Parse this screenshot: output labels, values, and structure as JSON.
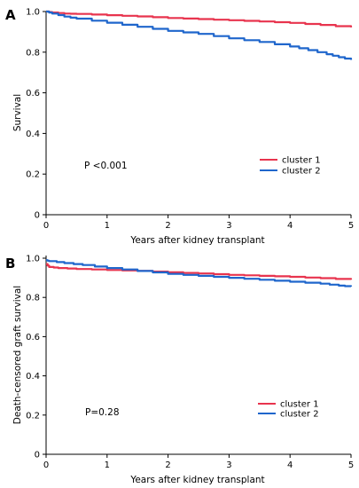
{
  "chart_data": [
    {
      "type": "line",
      "panel_label": "A",
      "xlabel": "Years after kidney transplant",
      "ylabel": "Survival",
      "xlim": [
        0,
        5
      ],
      "ylim": [
        0,
        1.0
      ],
      "x_ticks": [
        "0",
        "1",
        "2",
        "3",
        "4",
        "5"
      ],
      "y_ticks": [
        "0",
        "0.2",
        "0.4",
        "0.6",
        "0.8",
        "1.0"
      ],
      "annotation": "P <0.001",
      "legend_position": "lower-right",
      "grid": false,
      "series": [
        {
          "name": "cluster 1",
          "color": "#e8344e",
          "x": [
            0,
            0.1,
            0.3,
            0.5,
            1,
            1.5,
            2,
            2.5,
            3,
            3.5,
            4,
            4.5,
            5
          ],
          "y": [
            1.0,
            0.995,
            0.99,
            0.988,
            0.982,
            0.976,
            0.968,
            0.963,
            0.957,
            0.951,
            0.944,
            0.934,
            0.922
          ]
        },
        {
          "name": "cluster 2",
          "color": "#1f66cc",
          "x": [
            0,
            0.1,
            0.3,
            0.5,
            1,
            1.5,
            2,
            2.5,
            3,
            3.5,
            4,
            4.3,
            4.6,
            4.8,
            5
          ],
          "y": [
            1.0,
            0.99,
            0.975,
            0.965,
            0.945,
            0.925,
            0.905,
            0.89,
            0.868,
            0.85,
            0.828,
            0.81,
            0.79,
            0.775,
            0.762
          ]
        }
      ]
    },
    {
      "type": "line",
      "panel_label": "B",
      "xlabel": "Years after kidney transplant",
      "ylabel": "Death-censored graft survival",
      "xlim": [
        0,
        5
      ],
      "ylim": [
        0,
        1.0
      ],
      "x_ticks": [
        "0",
        "1",
        "2",
        "3",
        "4",
        "5"
      ],
      "y_ticks": [
        "0",
        "0.2",
        "0.4",
        "0.6",
        "0.8",
        "1.0"
      ],
      "annotation": "P=0.28",
      "legend_position": "lower-right",
      "grid": false,
      "series": [
        {
          "name": "cluster 1",
          "color": "#e8344e",
          "x": [
            0,
            0.05,
            0.2,
            0.5,
            1,
            1.5,
            2,
            2.5,
            3,
            3.5,
            4,
            4.5,
            5
          ],
          "y": [
            0.97,
            0.955,
            0.95,
            0.945,
            0.94,
            0.935,
            0.928,
            0.922,
            0.915,
            0.91,
            0.905,
            0.898,
            0.89
          ]
        },
        {
          "name": "cluster 2",
          "color": "#1f66cc",
          "x": [
            0,
            0.05,
            0.3,
            0.6,
            1,
            1.5,
            2,
            2.5,
            3,
            3.5,
            4,
            4.5,
            4.8,
            5
          ],
          "y": [
            0.99,
            0.985,
            0.975,
            0.965,
            0.95,
            0.935,
            0.92,
            0.91,
            0.9,
            0.89,
            0.88,
            0.87,
            0.86,
            0.855
          ]
        }
      ]
    }
  ]
}
